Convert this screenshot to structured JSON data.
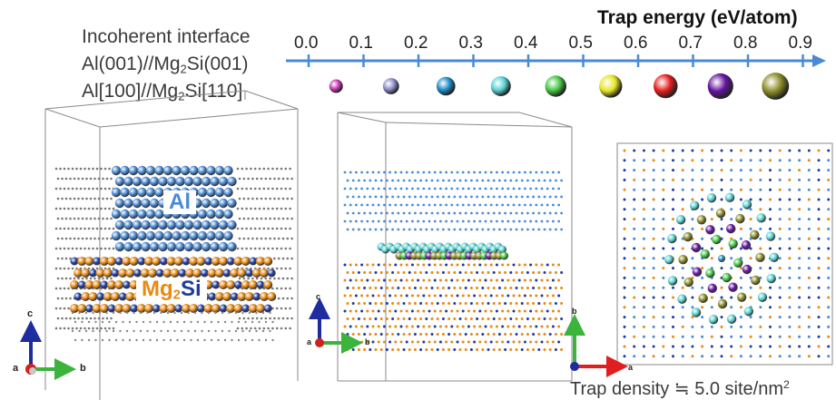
{
  "caption": {
    "line1": "Incoherent interface",
    "line2_a": "Al(001)//Mg",
    "line2_sub": "2",
    "line2_b": "Si(001)",
    "line3_a": "Al[100]//Mg",
    "line3_sub": "2",
    "line3_b": "Si[110]"
  },
  "energy_scale": {
    "title": "Trap energy (eV/atom)",
    "ticks": [
      "0.0",
      "0.1",
      "0.2",
      "0.3",
      "0.4",
      "0.5",
      "0.6",
      "0.7",
      "0.8",
      "0.9"
    ],
    "spheres": [
      {
        "energy": 0.05,
        "color": "#c83cb4",
        "size": 0.25
      },
      {
        "energy": 0.15,
        "color": "#8c8cc8",
        "size": 0.35
      },
      {
        "energy": 0.25,
        "color": "#1e8cc8",
        "size": 0.45
      },
      {
        "energy": 0.35,
        "color": "#5ad2d2",
        "size": 0.5
      },
      {
        "energy": 0.45,
        "color": "#46c846",
        "size": 0.55
      },
      {
        "energy": 0.55,
        "color": "#e6e628",
        "size": 0.62
      },
      {
        "energy": 0.65,
        "color": "#e61e1e",
        "size": 0.66
      },
      {
        "energy": 0.75,
        "color": "#6414a0",
        "size": 0.72
      },
      {
        "energy": 0.85,
        "color": "#8c8c28",
        "size": 0.78
      }
    ],
    "axis_color": "#4a8ad4"
  },
  "panels": {
    "left": {
      "label_al": "Al",
      "label_mg": "Mg",
      "label_mg_sub": "2",
      "label_si": "Si",
      "al_color": "#4a8ad4",
      "mg_color": "#e88a14",
      "si_color": "#1e3ca0"
    },
    "axes_left": {
      "c": "c",
      "a": "a",
      "b": "b"
    },
    "axes_middle": {
      "c": "c",
      "a": "a",
      "b": "b"
    },
    "axes_right": {
      "b": "b",
      "a": "a"
    }
  },
  "density": {
    "text_a": "Trap density ≒ 5.0 site/nm",
    "text_sup": "2"
  }
}
